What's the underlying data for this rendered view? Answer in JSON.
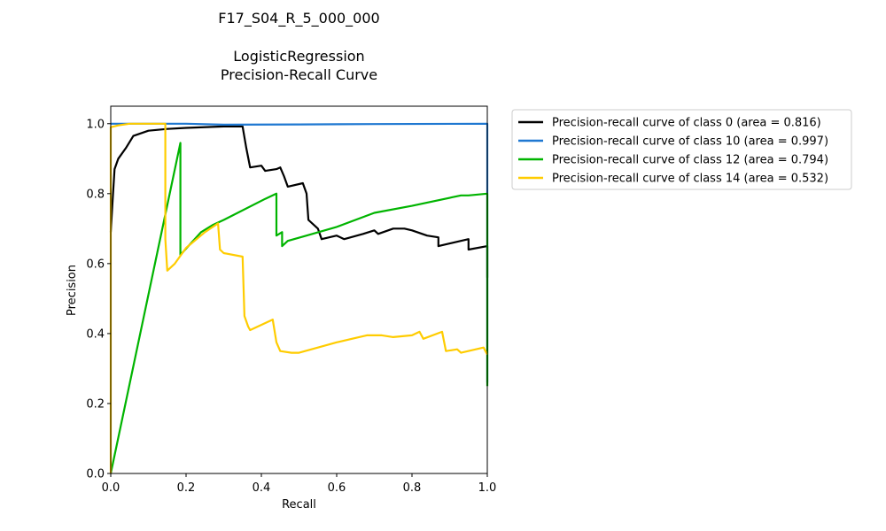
{
  "chart_data": {
    "type": "line",
    "title_lines": [
      "F17_S04_R_5_000_000",
      "",
      "LogisticRegression",
      "Precision-Recall Curve"
    ],
    "xlabel": "Recall",
    "ylabel": "Precision",
    "xlim": [
      0,
      1
    ],
    "ylim": [
      0,
      1.05
    ],
    "xticks": [
      0.0,
      0.2,
      0.4,
      0.6,
      0.8,
      1.0
    ],
    "yticks": [
      0.0,
      0.2,
      0.4,
      0.6,
      0.8,
      1.0
    ],
    "xtick_labels": [
      "0.0",
      "0.2",
      "0.4",
      "0.6",
      "0.8",
      "1.0"
    ],
    "ytick_labels": [
      "0.0",
      "0.2",
      "0.4",
      "0.6",
      "0.8",
      "1.0"
    ],
    "grid": false,
    "legend_placement": "outside-right-top",
    "series": [
      {
        "name": "Precision-recall curve of class 0 (area = 0.816)",
        "color": "#000000",
        "points": [
          [
            0.0,
            0.69
          ],
          [
            0.005,
            0.78
          ],
          [
            0.01,
            0.87
          ],
          [
            0.02,
            0.9
          ],
          [
            0.04,
            0.93
          ],
          [
            0.06,
            0.965
          ],
          [
            0.1,
            0.98
          ],
          [
            0.15,
            0.985
          ],
          [
            0.2,
            0.988
          ],
          [
            0.3,
            0.992
          ],
          [
            0.35,
            0.992
          ],
          [
            0.36,
            0.93
          ],
          [
            0.37,
            0.875
          ],
          [
            0.4,
            0.88
          ],
          [
            0.41,
            0.865
          ],
          [
            0.44,
            0.87
          ],
          [
            0.45,
            0.875
          ],
          [
            0.46,
            0.85
          ],
          [
            0.47,
            0.82
          ],
          [
            0.51,
            0.83
          ],
          [
            0.52,
            0.8
          ],
          [
            0.525,
            0.725
          ],
          [
            0.55,
            0.7
          ],
          [
            0.56,
            0.67
          ],
          [
            0.6,
            0.68
          ],
          [
            0.62,
            0.67
          ],
          [
            0.67,
            0.685
          ],
          [
            0.7,
            0.695
          ],
          [
            0.71,
            0.685
          ],
          [
            0.75,
            0.7
          ],
          [
            0.78,
            0.7
          ],
          [
            0.8,
            0.695
          ],
          [
            0.84,
            0.68
          ],
          [
            0.87,
            0.675
          ],
          [
            0.87,
            0.65
          ],
          [
            0.95,
            0.67
          ],
          [
            0.95,
            0.64
          ],
          [
            1.0,
            0.65
          ],
          [
            1.0,
            0.56
          ]
        ]
      },
      {
        "name": "Precision-recall curve of class 10 (area = 0.997)",
        "color": "#1f78d1",
        "points": [
          [
            0.0,
            1.0
          ],
          [
            0.05,
            1.0
          ],
          [
            0.2,
            1.0
          ],
          [
            0.3,
            0.997
          ],
          [
            0.5,
            0.998
          ],
          [
            0.7,
            0.999
          ],
          [
            1.0,
            1.0
          ],
          [
            1.0,
            0.26
          ]
        ]
      },
      {
        "name": "Precision-recall curve of class 12 (area = 0.794)",
        "color": "#00b400",
        "points": [
          [
            0.0,
            0.0
          ],
          [
            0.185,
            0.945
          ],
          [
            0.185,
            0.625
          ],
          [
            0.24,
            0.69
          ],
          [
            0.27,
            0.71
          ],
          [
            0.3,
            0.725
          ],
          [
            0.41,
            0.785
          ],
          [
            0.44,
            0.8
          ],
          [
            0.44,
            0.68
          ],
          [
            0.455,
            0.69
          ],
          [
            0.455,
            0.65
          ],
          [
            0.47,
            0.665
          ],
          [
            0.52,
            0.68
          ],
          [
            0.6,
            0.705
          ],
          [
            0.7,
            0.745
          ],
          [
            0.8,
            0.765
          ],
          [
            0.93,
            0.795
          ],
          [
            0.95,
            0.795
          ],
          [
            1.0,
            0.8
          ],
          [
            1.0,
            0.25
          ]
        ]
      },
      {
        "name": "Precision-recall curve of class 14 (area = 0.532)",
        "color": "#ffcc00",
        "points": [
          [
            0.0,
            0.0
          ],
          [
            0.0,
            0.99
          ],
          [
            0.02,
            0.995
          ],
          [
            0.05,
            1.0
          ],
          [
            0.145,
            1.0
          ],
          [
            0.145,
            0.67
          ],
          [
            0.15,
            0.58
          ],
          [
            0.17,
            0.6
          ],
          [
            0.2,
            0.645
          ],
          [
            0.25,
            0.69
          ],
          [
            0.285,
            0.715
          ],
          [
            0.29,
            0.64
          ],
          [
            0.3,
            0.63
          ],
          [
            0.35,
            0.62
          ],
          [
            0.355,
            0.45
          ],
          [
            0.365,
            0.42
          ],
          [
            0.37,
            0.41
          ],
          [
            0.43,
            0.44
          ],
          [
            0.44,
            0.375
          ],
          [
            0.45,
            0.35
          ],
          [
            0.48,
            0.345
          ],
          [
            0.5,
            0.345
          ],
          [
            0.55,
            0.36
          ],
          [
            0.6,
            0.375
          ],
          [
            0.68,
            0.395
          ],
          [
            0.72,
            0.395
          ],
          [
            0.75,
            0.39
          ],
          [
            0.8,
            0.395
          ],
          [
            0.82,
            0.405
          ],
          [
            0.83,
            0.385
          ],
          [
            0.88,
            0.405
          ],
          [
            0.89,
            0.35
          ],
          [
            0.92,
            0.355
          ],
          [
            0.93,
            0.345
          ],
          [
            0.99,
            0.36
          ],
          [
            1.0,
            0.34
          ]
        ]
      }
    ]
  }
}
